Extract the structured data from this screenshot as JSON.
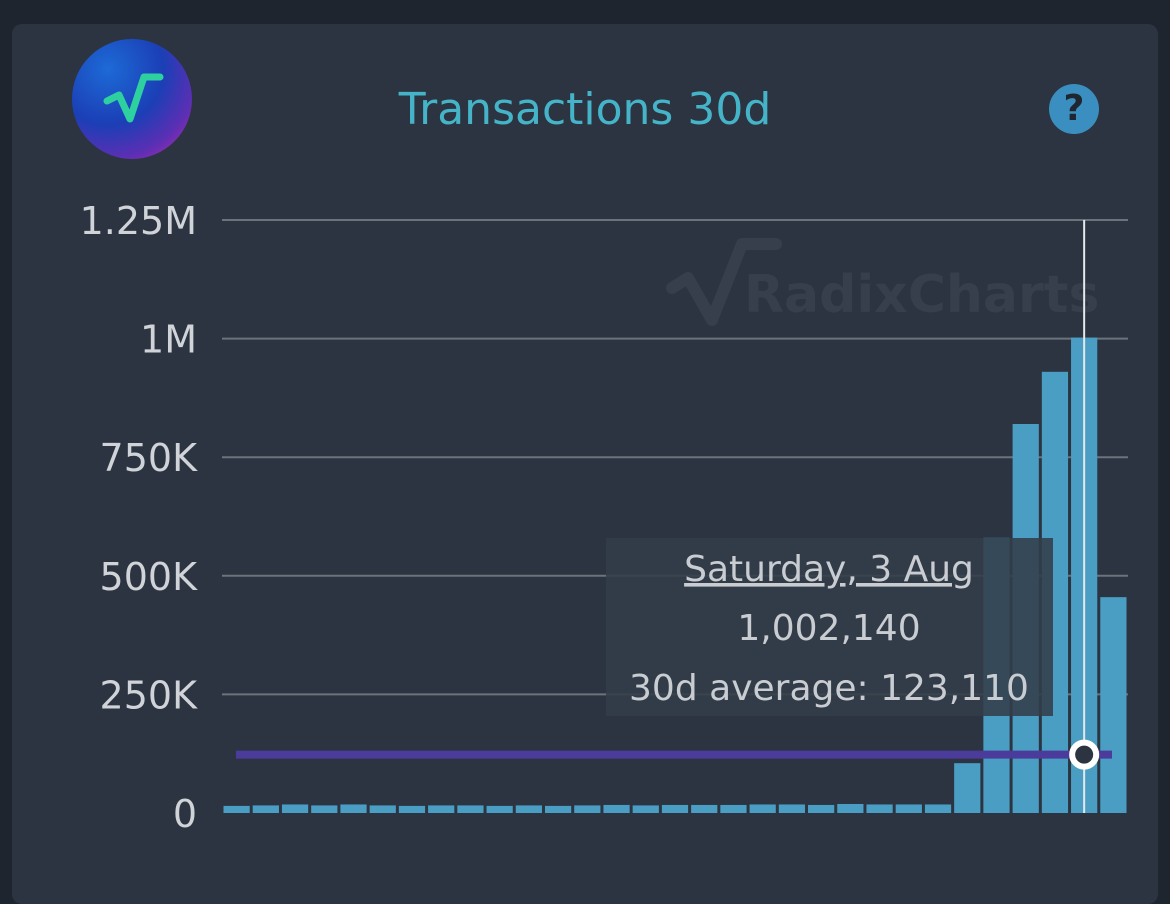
{
  "card": {
    "title": "Transactions 30d",
    "help_icon": "question-icon",
    "logo_icon": "radix-sqrt-logo-icon"
  },
  "colors": {
    "background": "#1f252e",
    "card": "#2b3440",
    "title": "#45b4c8",
    "bar": "#4a9ec4",
    "average_line": "#4b3b9b",
    "gridline": "#6b737c",
    "tick_label": "#d0d4d9",
    "tooltip_bg": "#323d49",
    "tooltip_text": "#c9cdd2"
  },
  "watermark": {
    "text": "RadixCharts"
  },
  "tooltip": {
    "date": "Saturday, 3 Aug",
    "value": "1,002,140",
    "average": "30d average: 123,110"
  },
  "chart_data": {
    "type": "bar",
    "title": "Transactions 30d",
    "xlabel": "",
    "ylabel": "",
    "ylim": [
      0,
      1250000
    ],
    "y_ticks": [
      0,
      250000,
      500000,
      750000,
      1000000,
      1250000
    ],
    "y_tick_labels": [
      "0",
      "250K",
      "500K",
      "750K",
      "1M",
      "1.25M"
    ],
    "grid": true,
    "values": [
      15000,
      16000,
      18000,
      16000,
      18000,
      16000,
      15000,
      16000,
      16000,
      15000,
      16000,
      15000,
      16000,
      17000,
      16000,
      17000,
      17000,
      17000,
      18000,
      18000,
      17000,
      19000,
      18000,
      18000,
      18000,
      105000,
      580000,
      820000,
      930000,
      1002140,
      455000
    ],
    "average": 123110,
    "highlight_index": 29
  }
}
